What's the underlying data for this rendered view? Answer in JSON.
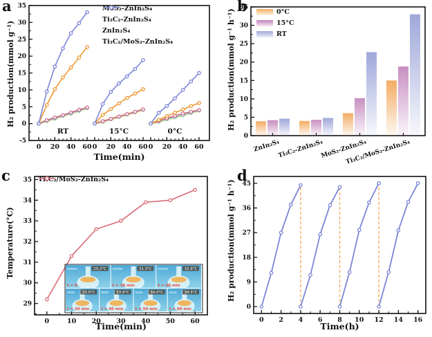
{
  "figure": {
    "background": "#ffffff",
    "panel_letters": {
      "a": "a",
      "b": "b",
      "c": "c",
      "d": "d"
    }
  },
  "colors": {
    "axis": "#111111",
    "orange": "#EE9833",
    "pink": "#CE6B8C",
    "teal": "#7FC0B1",
    "blue": "#7B86D6",
    "rose": "#D96B75",
    "bar_0c": "#F3A85C",
    "bar_15c": "#C489BE",
    "bar_rt": "#9AA3D8",
    "dashed_orange": "#F6A85A",
    "halo_yellow": "#F5EFC4",
    "inset_blue_top": "#4FA8D6",
    "inset_blue_bottom": "#8ED2EA",
    "inset_flask": "#DDF3F8",
    "inset_glow": "#F2AE4E",
    "inset_time_text": "#E8453C"
  },
  "chart_data": [
    {
      "panel": "a",
      "type": "line",
      "ylabel": "H₂ production(mmol g⁻¹)",
      "xlabel": "Time(min)",
      "ylim": [
        -5,
        35
      ],
      "yticks": [
        -5,
        0,
        5,
        10,
        15,
        20,
        25,
        30,
        35
      ],
      "x": [
        0,
        10,
        20,
        30,
        40,
        50,
        60
      ],
      "xticks": [
        0,
        20,
        40,
        60
      ],
      "groups": [
        "RT",
        "15°C",
        "0°C"
      ],
      "legend_position": "top-right",
      "series": [
        {
          "name": "MoS₂-ZnIn₂S₄",
          "color": "orange",
          "values": [
            [
              0,
              5.5,
              10.2,
              13.7,
              16.6,
              19.6,
              22.7
            ],
            [
              0,
              2.6,
              4.3,
              6.0,
              7.6,
              8.9,
              10.2
            ],
            [
              0,
              1.1,
              2.2,
              3.2,
              4.2,
              5.2,
              6.1
            ]
          ]
        },
        {
          "name": "Ti₃C₂-ZnIn₂S₄",
          "color": "pink",
          "values": [
            [
              0,
              1.0,
              1.8,
              2.5,
              3.3,
              4.1,
              4.8
            ],
            [
              0,
              0.7,
              1.4,
              2.1,
              2.8,
              3.5,
              4.2
            ],
            [
              0,
              0.8,
              1.6,
              2.3,
              3.0,
              3.5,
              4.0
            ]
          ]
        },
        {
          "name": "ZnIn₂S₄",
          "color": "teal",
          "values": [
            [
              0,
              0.8,
              1.5,
              2.3,
              3.0,
              3.8,
              4.6
            ],
            [
              0,
              0.6,
              1.3,
              2.0,
              2.7,
              3.4,
              4.1
            ],
            [
              0,
              0.6,
              1.3,
              1.9,
              2.5,
              3.2,
              3.9
            ]
          ]
        },
        {
          "name": "Ti₃C₂/MoS₂-ZnIn₂S₄",
          "color": "blue",
          "values": [
            [
              0,
              9.5,
              16.9,
              22.3,
              26.8,
              29.8,
              33.0
            ],
            [
              0,
              5.8,
              9.4,
              11.9,
              14.0,
              16.2,
              18.8
            ],
            [
              0,
              3.2,
              5.2,
              7.5,
              10.0,
              12.5,
              15.0
            ]
          ]
        }
      ]
    },
    {
      "panel": "b",
      "type": "bar",
      "ylabel": "H₂ production(mmol g⁻¹ h⁻¹)",
      "ylim": [
        0,
        35
      ],
      "yticks": [
        0,
        5,
        10,
        15,
        20,
        25,
        30,
        35
      ],
      "legend_position": "top-left",
      "categories": [
        "ZnIn₂S₄",
        "Ti₃C₂-ZnIn₂S₄",
        "MoS₂-ZnIn₂S₄",
        "Ti₃C₂/MoS₂-ZnIn₂S₄"
      ],
      "series": [
        {
          "name": "0°C",
          "color": "bar_0c",
          "values": [
            3.9,
            4.0,
            6.1,
            15.0
          ]
        },
        {
          "name": "15°C",
          "color": "bar_15c",
          "values": [
            4.2,
            4.3,
            10.2,
            18.8
          ]
        },
        {
          "name": "RT",
          "color": "bar_rt",
          "values": [
            4.6,
            4.8,
            22.7,
            33.0
          ]
        }
      ]
    },
    {
      "panel": "c",
      "type": "line",
      "ylabel": "Temperature(°C)",
      "xlabel": "Time(min)",
      "ylim": [
        28.45,
        35.15
      ],
      "yticks": [
        29,
        30,
        31,
        32,
        33,
        34,
        35
      ],
      "xlim": [
        -5,
        65
      ],
      "xticks": [
        0,
        10,
        20,
        30,
        40,
        50,
        60
      ],
      "legend_position": "top-left",
      "series": [
        {
          "name": "Ti₃C₂/MoS₂-ZnIn₂S₄",
          "color": "rose",
          "x": [
            0,
            10,
            20,
            30,
            40,
            50,
            60
          ],
          "y": [
            29.2,
            31.3,
            32.6,
            33.0,
            33.9,
            34.0,
            34.5
          ]
        }
      ],
      "inset": {
        "description": "infrared thermal photos of reaction flask",
        "tiles": [
          {
            "temp": "29.2°C",
            "time": "t = 0"
          },
          {
            "temp": "31.3°C",
            "time": "t = 10 min"
          },
          {
            "temp": "32.6°C",
            "time": "t = 20 min"
          },
          {
            "temp": "33.0°C",
            "time": "t = 30 min"
          },
          {
            "temp": "33.9°C",
            "time": "t = 40 min"
          },
          {
            "temp": "34.0°C",
            "time": "t = 50 min"
          },
          {
            "temp": "34.5°C",
            "time": "t = 60 min"
          }
        ]
      }
    },
    {
      "panel": "d",
      "type": "line",
      "ylabel": "H₂ production(mmol g⁻¹ h⁻¹)",
      "xlabel": "Time(h)",
      "ylim": [
        -2.5,
        47.5
      ],
      "yticks": [
        0,
        9,
        18,
        27,
        36,
        45
      ],
      "xlim": [
        -0.8,
        16.8
      ],
      "xticks": [
        0,
        2,
        4,
        6,
        8,
        10,
        12,
        14,
        16
      ],
      "color": "blue",
      "cycles": [
        {
          "x": [
            0,
            1,
            2,
            3,
            4
          ],
          "y": [
            0,
            12.3,
            27.0,
            37.2,
            44.3
          ]
        },
        {
          "x": [
            4,
            5,
            6,
            7,
            8
          ],
          "y": [
            0,
            11.5,
            26.4,
            37.0,
            43.6
          ]
        },
        {
          "x": [
            8,
            9,
            10,
            11,
            12
          ],
          "y": [
            0,
            12.6,
            28.0,
            38.0,
            45.0
          ]
        },
        {
          "x": [
            12,
            13,
            14,
            15,
            16
          ],
          "y": [
            0,
            12.6,
            27.8,
            38.2,
            45.0
          ]
        }
      ],
      "dashed_lines_x": [
        4,
        8,
        12
      ]
    }
  ]
}
